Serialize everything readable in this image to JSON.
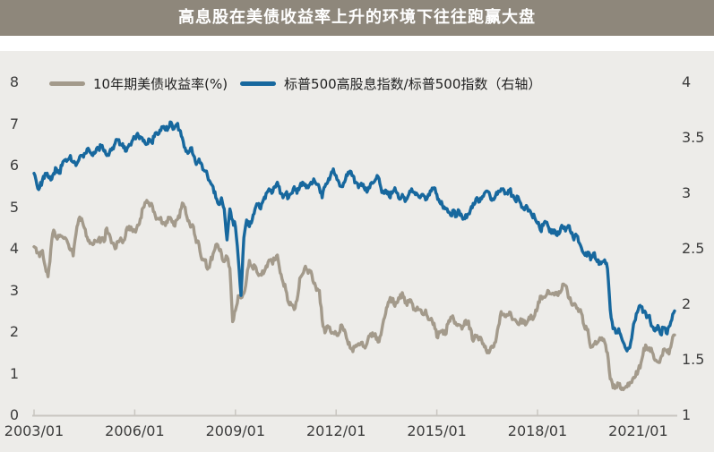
{
  "title": "高息股在美债收益率上升的环境下往往跑赢大盘",
  "colors": {
    "page_bg": "#FFFFFF",
    "panel_bg": "#EDECE9",
    "title_bar_bg": "#8E877B",
    "title_text": "#FFFFFF",
    "axis_text": "#3D3D3D",
    "axis_line": "#C9C6C1",
    "treasury_line": "#A39A8B",
    "ratio_line": "#17689E"
  },
  "legend": {
    "items": [
      {
        "label": "10年期美债收益率(%)",
        "color": "#A39A8B"
      },
      {
        "label": "标普500高股息指数/标普500指数（右轴）",
        "color": "#17689E"
      }
    ]
  },
  "chart_data": {
    "type": "line",
    "title": "高息股在美债收益率上升的环境下往往跑赢大盘",
    "x_start": "2003/01",
    "x_end": "2022/02",
    "x_interval": "monthly",
    "x_tick_labels": [
      "2003/01",
      "2006/01",
      "2009/01",
      "2012/01",
      "2015/01",
      "2018/01",
      "2021/01"
    ],
    "grid": false,
    "legend_position": "top-left",
    "left_axis": {
      "min": 0,
      "max": 8,
      "ticks": [
        0,
        1,
        2,
        3,
        4,
        5,
        6,
        7,
        8
      ]
    },
    "right_axis": {
      "min": 1,
      "max": 4,
      "ticks": [
        1,
        1.5,
        2,
        2.5,
        3,
        3.5,
        4
      ]
    },
    "series": [
      {
        "name": "10年期美债收益率(%)",
        "axis": "left",
        "color": "#A39A8B",
        "values": [
          4.05,
          3.9,
          3.81,
          3.96,
          3.57,
          3.33,
          3.98,
          4.45,
          4.27,
          4.29,
          4.3,
          4.27,
          4.15,
          3.97,
          3.83,
          4.35,
          4.72,
          4.73,
          4.5,
          4.28,
          4.13,
          4.1,
          4.19,
          4.23,
          4.22,
          4.17,
          4.5,
          4.34,
          4.14,
          4.0,
          4.18,
          4.26,
          4.2,
          4.46,
          4.54,
          4.47,
          4.42,
          4.57,
          4.72,
          4.99,
          5.11,
          5.11,
          5.09,
          4.88,
          4.72,
          4.73,
          4.6,
          4.56,
          4.76,
          4.72,
          4.56,
          4.69,
          4.75,
          5.1,
          5.0,
          4.67,
          4.52,
          4.53,
          4.15,
          4.1,
          3.74,
          3.74,
          3.51,
          3.68,
          3.88,
          4.1,
          4.01,
          3.89,
          3.69,
          3.81,
          3.53,
          2.25,
          2.52,
          2.87,
          2.82,
          2.93,
          3.29,
          3.72,
          3.56,
          3.59,
          3.4,
          3.39,
          3.4,
          3.59,
          3.73,
          3.69,
          3.73,
          3.85,
          3.42,
          3.2,
          3.01,
          2.7,
          2.65,
          2.54,
          2.76,
          3.29,
          3.39,
          3.58,
          3.41,
          3.46,
          3.17,
          3.0,
          3.0,
          2.3,
          1.98,
          2.15,
          2.01,
          1.98,
          1.97,
          1.97,
          2.17,
          2.05,
          1.8,
          1.62,
          1.53,
          1.68,
          1.72,
          1.75,
          1.65,
          1.72,
          1.91,
          1.98,
          1.96,
          1.76,
          1.93,
          2.3,
          2.58,
          2.74,
          2.81,
          2.62,
          2.72,
          2.9,
          2.86,
          2.71,
          2.72,
          2.71,
          2.56,
          2.6,
          2.54,
          2.42,
          2.53,
          2.3,
          2.33,
          2.21,
          1.88,
          1.98,
          2.04,
          1.94,
          2.2,
          2.36,
          2.32,
          2.17,
          2.17,
          2.07,
          2.26,
          2.24,
          2.09,
          1.78,
          1.89,
          1.81,
          1.81,
          1.64,
          1.5,
          1.56,
          1.63,
          1.76,
          2.14,
          2.49,
          2.43,
          2.42,
          2.48,
          2.3,
          2.3,
          2.19,
          2.32,
          2.21,
          2.2,
          2.36,
          2.35,
          2.4,
          2.58,
          2.86,
          2.84,
          2.87,
          2.98,
          2.91,
          2.89,
          2.89,
          2.94,
          3.15,
          3.12,
          2.83,
          2.71,
          2.68,
          2.57,
          2.53,
          2.4,
          2.07,
          2.06,
          1.63,
          1.7,
          1.71,
          1.81,
          1.86,
          1.76,
          1.5,
          0.87,
          0.66,
          0.67,
          0.73,
          0.62,
          0.65,
          0.68,
          0.79,
          0.87,
          0.93,
          1.08,
          1.26,
          1.61,
          1.64,
          1.62,
          1.52,
          1.32,
          1.28,
          1.37,
          1.58,
          1.56,
          1.47,
          1.76,
          1.93
        ]
      },
      {
        "name": "标普500高股息指数/标普500指数（右轴）",
        "axis": "right",
        "color": "#17689E",
        "values": [
          3.18,
          3.08,
          3.05,
          3.12,
          3.18,
          3.15,
          3.12,
          3.18,
          3.22,
          3.18,
          3.25,
          3.3,
          3.3,
          3.34,
          3.28,
          3.25,
          3.3,
          3.34,
          3.36,
          3.4,
          3.37,
          3.34,
          3.37,
          3.4,
          3.42,
          3.38,
          3.34,
          3.37,
          3.41,
          3.45,
          3.48,
          3.44,
          3.41,
          3.38,
          3.44,
          3.47,
          3.5,
          3.54,
          3.51,
          3.47,
          3.44,
          3.49,
          3.46,
          3.51,
          3.54,
          3.57,
          3.6,
          3.57,
          3.59,
          3.64,
          3.58,
          3.62,
          3.57,
          3.5,
          3.41,
          3.36,
          3.41,
          3.34,
          3.26,
          3.31,
          3.26,
          3.2,
          3.16,
          3.1,
          3.06,
          2.96,
          2.9,
          2.96,
          2.86,
          2.58,
          2.86,
          2.76,
          2.7,
          2.42,
          2.08,
          2.6,
          2.76,
          2.7,
          2.76,
          2.86,
          2.9,
          2.86,
          2.94,
          3.0,
          3.04,
          3.0,
          3.06,
          3.1,
          3.0,
          2.96,
          3.0,
          2.96,
          3.0,
          3.06,
          3.0,
          3.06,
          3.1,
          3.08,
          3.05,
          3.1,
          3.13,
          3.08,
          3.05,
          2.96,
          3.06,
          3.1,
          3.16,
          3.22,
          3.16,
          3.1,
          3.06,
          3.1,
          3.16,
          3.2,
          3.16,
          3.1,
          3.05,
          3.09,
          3.05,
          3.01,
          3.05,
          3.09,
          3.12,
          3.15,
          3.05,
          3.0,
          3.02,
          2.97,
          3.0,
          3.05,
          3.0,
          2.95,
          2.97,
          2.94,
          2.99,
          3.04,
          3.01,
          2.99,
          2.96,
          2.99,
          2.94,
          2.99,
          3.02,
          3.05,
          2.99,
          2.92,
          2.89,
          2.86,
          2.83,
          2.8,
          2.85,
          2.79,
          2.84,
          2.79,
          2.77,
          2.81,
          2.85,
          2.91,
          2.95,
          2.92,
          2.95,
          3.0,
          3.02,
          2.98,
          2.95,
          2.98,
          3.02,
          3.04,
          3.03,
          3.0,
          3.03,
          2.98,
          2.94,
          2.97,
          2.91,
          2.86,
          2.89,
          2.85,
          2.8,
          2.78,
          2.73,
          2.67,
          2.71,
          2.74,
          2.69,
          2.64,
          2.67,
          2.62,
          2.65,
          2.7,
          2.66,
          2.71,
          2.64,
          2.58,
          2.62,
          2.55,
          2.48,
          2.44,
          2.47,
          2.4,
          2.46,
          2.4,
          2.36,
          2.38,
          2.4,
          2.32,
          1.95,
          1.78,
          1.74,
          1.78,
          1.7,
          1.64,
          1.58,
          1.61,
          1.76,
          1.86,
          1.95,
          1.98,
          1.93,
          1.88,
          1.9,
          1.8,
          1.76,
          1.81,
          1.73,
          1.79,
          1.74,
          1.8,
          1.86,
          1.94
        ]
      }
    ]
  }
}
